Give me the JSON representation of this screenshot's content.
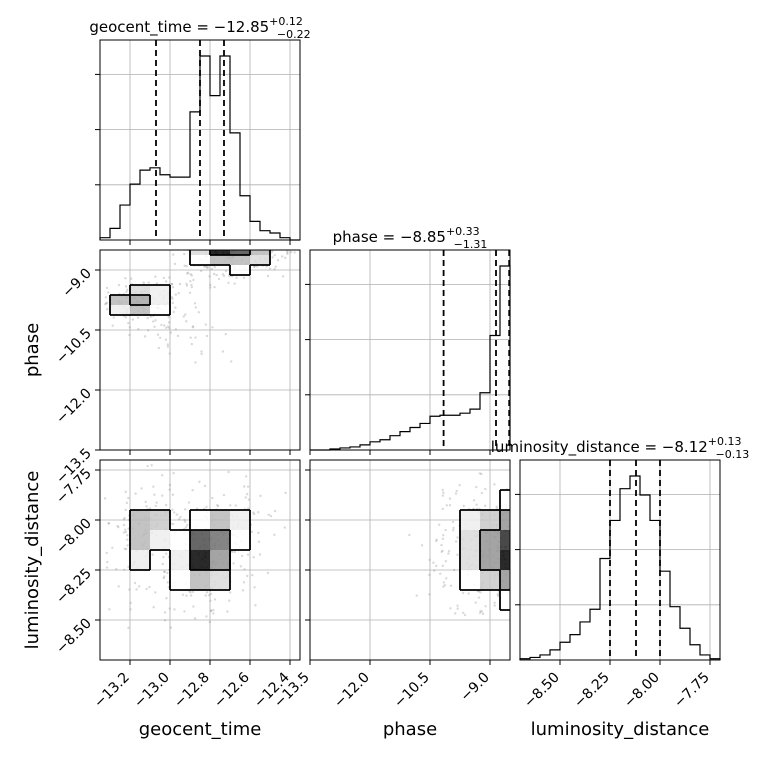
{
  "chart_data": {
    "type": "corner",
    "parameters": [
      {
        "name": "geocent_time",
        "label": "geocent_time",
        "title": "geocent_time = −12.85",
        "title_sup": "+0.12",
        "title_sub": "−0.22",
        "median": -12.85,
        "upper_err": 0.12,
        "lower_err": 0.22,
        "range": [
          -13.35,
          -12.35
        ],
        "ticks": [
          -13.2,
          -13.0,
          -12.8,
          -12.6,
          -12.4
        ],
        "tick_labels": [
          "−13.2",
          "−13.0",
          "−12.8",
          "−12.6",
          "−12.4"
        ],
        "quantiles": [
          -13.07,
          -12.85,
          -12.73
        ],
        "hist": {
          "edges": [
            -13.35,
            -13.3,
            -13.25,
            -13.2,
            -13.15,
            -13.1,
            -13.05,
            -13.0,
            -12.95,
            -12.9,
            -12.85,
            -12.8,
            -12.75,
            -12.7,
            -12.65,
            -12.6,
            -12.55,
            -12.5,
            -12.45,
            -12.4,
            -12.35
          ],
          "counts": [
            1,
            5,
            15,
            24,
            30,
            31,
            28,
            27,
            27,
            55,
            79,
            62,
            79,
            46,
            19,
            8,
            4,
            3,
            1,
            0
          ]
        }
      },
      {
        "name": "phase",
        "label": "phase",
        "title": "phase = −8.85",
        "title_sup": "+0.33",
        "title_sub": "−1.31",
        "median": -8.85,
        "upper_err": 0.33,
        "lower_err": 1.31,
        "range": [
          -13.5,
          -8.5
        ],
        "ticks": [
          -13.5,
          -12.0,
          -10.5,
          -9.0
        ],
        "tick_labels": [
          "−13.5",
          "−12.0",
          "−10.5",
          "−9.0"
        ],
        "quantiles": [
          -10.16,
          -8.85,
          -8.52
        ],
        "hist": {
          "edges": [
            -13.5,
            -13.25,
            -13.0,
            -12.75,
            -12.5,
            -12.25,
            -12.0,
            -11.75,
            -11.5,
            -11.25,
            -11.0,
            -10.75,
            -10.5,
            -10.25,
            -10.0,
            -9.75,
            -9.5,
            -9.25,
            -9.0,
            -8.75,
            -8.5
          ],
          "counts": [
            0,
            0,
            1,
            2,
            3,
            5,
            8,
            10,
            14,
            18,
            22,
            26,
            33,
            34,
            34,
            36,
            40,
            56,
            112,
            180
          ]
        }
      },
      {
        "name": "luminosity_distance",
        "label": "luminosity_distance",
        "title": "luminosity_distance = −8.12",
        "title_sup": "+0.13",
        "title_sub": "−0.13",
        "median": -8.12,
        "upper_err": 0.13,
        "lower_err": 0.13,
        "range": [
          -8.7,
          -7.7
        ],
        "ticks": [
          -8.5,
          -8.25,
          -8.0,
          -7.75
        ],
        "tick_labels": [
          "−8.50",
          "−8.25",
          "−8.00",
          "−7.75"
        ],
        "quantiles": [
          -8.25,
          -8.12,
          -8.0
        ],
        "hist": {
          "edges": [
            -8.7,
            -8.65,
            -8.6,
            -8.55,
            -8.5,
            -8.45,
            -8.4,
            -8.35,
            -8.3,
            -8.25,
            -8.2,
            -8.15,
            -8.1,
            -8.05,
            -8.0,
            -7.95,
            -7.9,
            -7.85,
            -7.8,
            -7.75,
            -7.7
          ],
          "counts": [
            1,
            2,
            4,
            8,
            14,
            20,
            30,
            40,
            80,
            110,
            135,
            145,
            130,
            110,
            70,
            42,
            25,
            12,
            4,
            1
          ]
        }
      }
    ],
    "pairs": [
      {
        "x": "geocent_time",
        "y": "phase",
        "points_scatter": [
          [
            -13.3,
            -9.9
          ],
          [
            -13.25,
            -10.0
          ],
          [
            -13.2,
            -9.8
          ],
          [
            -13.15,
            -10.3
          ],
          [
            -13.1,
            -10.6
          ],
          [
            -13.05,
            -10.8
          ],
          [
            -13.0,
            -10.9
          ],
          [
            -12.95,
            -11.1
          ],
          [
            -12.9,
            -11.3
          ],
          [
            -12.85,
            -11.6
          ],
          [
            -12.82,
            -11.9
          ],
          [
            -12.8,
            -12.2
          ],
          [
            -13.1,
            -9.7
          ],
          [
            -12.9,
            -9.2
          ],
          [
            -12.8,
            -8.9
          ],
          [
            -12.7,
            -8.8
          ],
          [
            -12.6,
            -8.9
          ],
          [
            -12.5,
            -8.8
          ]
        ],
        "density_peak": [
          -12.85,
          -8.55
        ],
        "grid_x": [
          -13.35,
          -13.25,
          -13.15,
          -13.05,
          -12.95,
          -12.85,
          -12.75,
          -12.65,
          -12.55,
          -12.45
        ],
        "grid_y": [
          -8.5,
          -8.75,
          -9.0,
          -9.25,
          -9.5,
          -9.75,
          -10.0,
          -10.25,
          -10.5,
          -10.75,
          -11.0,
          -11.25,
          -11.5,
          -11.75,
          -12.0
        ],
        "density": [
          [
            0,
            0,
            0,
            0,
            0.1,
            0.4,
            1.0,
            0.8,
            0.5,
            0.2
          ],
          [
            0,
            0,
            0,
            0,
            0.1,
            0.3,
            0.5,
            0.5,
            0.4,
            0.2
          ],
          [
            0,
            0,
            0,
            0.05,
            0.1,
            0.2,
            0.25,
            0.3,
            0.2,
            0.05
          ],
          [
            0,
            0,
            0.1,
            0.2,
            0.2,
            0.15,
            0.1,
            0.05,
            0,
            0
          ],
          [
            0,
            0.2,
            0.4,
            0.35,
            0.2,
            0.05,
            0,
            0,
            0,
            0
          ],
          [
            0.15,
            0.5,
            0.55,
            0.35,
            0.1,
            0,
            0,
            0,
            0,
            0
          ],
          [
            0.1,
            0.35,
            0.5,
            0.3,
            0.1,
            0,
            0,
            0,
            0,
            0
          ],
          [
            0,
            0.1,
            0.25,
            0.25,
            0.15,
            0.05,
            0,
            0,
            0,
            0
          ],
          [
            0,
            0,
            0.1,
            0.2,
            0.15,
            0.1,
            0,
            0,
            0,
            0
          ],
          [
            0,
            0,
            0,
            0.05,
            0.1,
            0.1,
            0.05,
            0,
            0,
            0
          ],
          [
            0,
            0,
            0,
            0,
            0.05,
            0.05,
            0.02,
            0,
            0,
            0
          ],
          [
            0,
            0,
            0,
            0,
            0,
            0.03,
            0.02,
            0,
            0,
            0
          ],
          [
            0,
            0,
            0,
            0,
            0,
            0.02,
            0.01,
            0,
            0,
            0
          ],
          [
            0,
            0,
            0,
            0,
            0,
            0.01,
            0,
            0,
            0,
            0
          ],
          [
            0,
            0,
            0,
            0,
            0,
            0,
            0,
            0,
            0,
            0
          ]
        ]
      },
      {
        "x": "geocent_time",
        "y": "luminosity_distance",
        "grid_x": [
          -13.35,
          -13.25,
          -13.15,
          -13.05,
          -12.95,
          -12.85,
          -12.75,
          -12.65,
          -12.55,
          -12.45
        ],
        "grid_y": [
          -7.7,
          -7.8,
          -7.9,
          -8.0,
          -8.1,
          -8.2,
          -8.3,
          -8.4,
          -8.5,
          -8.6,
          -8.7
        ],
        "density": [
          [
            0,
            0,
            0,
            0,
            0,
            0,
            0,
            0,
            0,
            0
          ],
          [
            0,
            0,
            0.05,
            0.1,
            0.05,
            0.02,
            0.05,
            0.05,
            0.05,
            0
          ],
          [
            0,
            0.1,
            0.2,
            0.25,
            0.15,
            0.1,
            0.2,
            0.2,
            0.15,
            0.05
          ],
          [
            0,
            0.2,
            0.5,
            0.45,
            0.2,
            0.3,
            0.5,
            0.35,
            0.2,
            0.05
          ],
          [
            0,
            0.25,
            0.5,
            0.35,
            0.3,
            0.8,
            0.7,
            0.3,
            0.1,
            0
          ],
          [
            0,
            0.2,
            0.35,
            0.25,
            0.35,
            1.0,
            0.6,
            0.25,
            0.05,
            0
          ],
          [
            0,
            0.1,
            0.2,
            0.15,
            0.3,
            0.5,
            0.4,
            0.2,
            0.05,
            0
          ],
          [
            0,
            0.05,
            0.1,
            0.1,
            0.2,
            0.25,
            0.2,
            0.1,
            0,
            0
          ],
          [
            0,
            0,
            0.05,
            0.05,
            0.05,
            0.1,
            0.05,
            0,
            0,
            0
          ],
          [
            0,
            0,
            0,
            0,
            0,
            0,
            0,
            0,
            0,
            0
          ],
          [
            0,
            0,
            0,
            0,
            0,
            0,
            0,
            0,
            0,
            0
          ]
        ]
      },
      {
        "x": "phase",
        "y": "luminosity_distance",
        "grid_x": [
          -13.5,
          -13.0,
          -12.5,
          -12.0,
          -11.5,
          -11.0,
          -10.5,
          -10.0,
          -9.5,
          -9.0,
          -8.5
        ],
        "grid_y": [
          -7.7,
          -7.8,
          -7.9,
          -8.0,
          -8.1,
          -8.2,
          -8.3,
          -8.4,
          -8.5,
          -8.6,
          -8.7
        ],
        "density": [
          [
            0,
            0,
            0,
            0,
            0,
            0,
            0,
            0,
            0,
            0,
            0
          ],
          [
            0,
            0,
            0,
            0,
            0,
            0,
            0,
            0.02,
            0.05,
            0.05,
            0.05
          ],
          [
            0,
            0,
            0,
            0,
            0,
            0,
            0.02,
            0.1,
            0.2,
            0.25,
            0.3
          ],
          [
            0,
            0,
            0,
            0,
            0,
            0,
            0.05,
            0.2,
            0.35,
            0.45,
            0.6
          ],
          [
            0,
            0,
            0,
            0,
            0,
            0.02,
            0.1,
            0.25,
            0.4,
            0.6,
            0.9
          ],
          [
            0,
            0,
            0,
            0,
            0,
            0.02,
            0.1,
            0.25,
            0.4,
            0.6,
            1.0
          ],
          [
            0,
            0,
            0,
            0,
            0,
            0,
            0.05,
            0.2,
            0.3,
            0.45,
            0.6
          ],
          [
            0,
            0,
            0,
            0,
            0,
            0,
            0.02,
            0.1,
            0.2,
            0.25,
            0.3
          ],
          [
            0,
            0,
            0,
            0,
            0,
            0,
            0,
            0.02,
            0.05,
            0.05,
            0.05
          ],
          [
            0,
            0,
            0,
            0,
            0,
            0,
            0,
            0,
            0,
            0,
            0
          ],
          [
            0,
            0,
            0,
            0,
            0,
            0,
            0,
            0,
            0,
            0,
            0
          ]
        ]
      }
    ],
    "grid": true,
    "colors": {
      "line": "#000000",
      "scatter": "#808080",
      "grid": "#b0b0b0"
    }
  }
}
